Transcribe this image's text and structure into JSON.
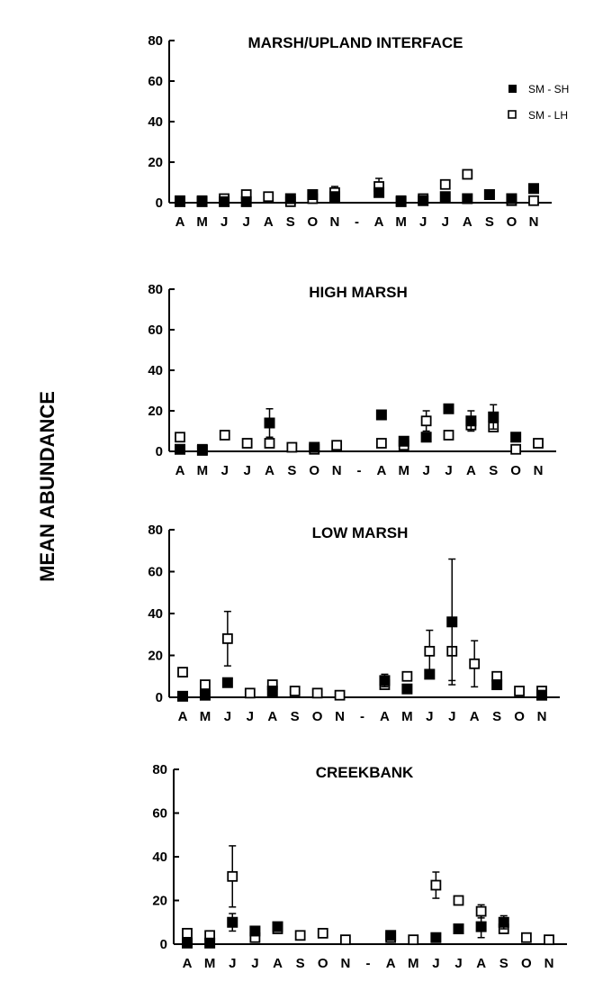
{
  "figure": {
    "ylabel": "MEAN ABUNDANCE"
  },
  "legend": {
    "sh_label": "SM - SH",
    "lh_label": "SM - LH"
  },
  "chart_data": [
    {
      "type": "scatter",
      "title": "MARSH/UPLAND INTERFACE",
      "ylim": [
        0,
        80
      ],
      "yticks": [
        0,
        20,
        40,
        60,
        80
      ],
      "months": [
        "A",
        "M",
        "J",
        "J",
        "A",
        "S",
        "O",
        "N",
        "-",
        "A",
        "M",
        "J",
        "J",
        "A",
        "S",
        "O",
        "N"
      ],
      "legend_position": "top-right",
      "series": [
        {
          "name": "SM - SH",
          "marker": "filled-square",
          "values": [
            0.5,
            0.5,
            0.5,
            0.5,
            null,
            2,
            4,
            3,
            null,
            5,
            0.5,
            1,
            3,
            2,
            4,
            2,
            7
          ],
          "error": [
            0,
            0,
            0,
            0,
            null,
            0,
            0,
            0,
            null,
            0,
            0,
            0,
            0,
            0,
            0,
            0,
            0
          ]
        },
        {
          "name": "SM - LH",
          "marker": "open-square",
          "values": [
            1,
            1,
            2,
            4,
            3,
            0.5,
            2,
            5,
            null,
            8,
            1,
            2,
            9,
            14,
            4,
            1,
            1
          ],
          "error": [
            0,
            0,
            0,
            0,
            0,
            0,
            0,
            3,
            null,
            4,
            0,
            0,
            0,
            2,
            0,
            0,
            0
          ]
        }
      ]
    },
    {
      "type": "scatter",
      "title": "HIGH MARSH",
      "ylim": [
        0,
        80
      ],
      "yticks": [
        0,
        20,
        40,
        60,
        80
      ],
      "months": [
        "A",
        "M",
        "J",
        "J",
        "A",
        "S",
        "O",
        "N",
        "-",
        "A",
        "M",
        "J",
        "J",
        "A",
        "S",
        "O",
        "N"
      ],
      "series": [
        {
          "name": "SM - SH",
          "marker": "filled-square",
          "values": [
            1,
            0.5,
            null,
            null,
            14,
            null,
            2,
            null,
            null,
            18,
            5,
            7,
            21,
            15,
            17,
            7,
            null
          ],
          "error": [
            0,
            0,
            null,
            null,
            7,
            null,
            0,
            null,
            null,
            2,
            0,
            0,
            0,
            5,
            6,
            0,
            null
          ]
        },
        {
          "name": "SM - LH",
          "marker": "open-square",
          "values": [
            7,
            1,
            8,
            4,
            4,
            2,
            1,
            3,
            null,
            4,
            3,
            15,
            8,
            13,
            12,
            1,
            4
          ],
          "error": [
            0,
            0,
            0,
            0,
            0,
            0,
            0,
            0,
            null,
            0,
            0,
            5,
            0,
            0,
            0,
            0,
            0
          ]
        }
      ]
    },
    {
      "type": "scatter",
      "title": "LOW MARSH",
      "ylim": [
        0,
        80
      ],
      "yticks": [
        0,
        20,
        40,
        60,
        80
      ],
      "months": [
        "A",
        "M",
        "J",
        "J",
        "A",
        "S",
        "O",
        "N",
        "-",
        "A",
        "M",
        "J",
        "J",
        "A",
        "S",
        "O",
        "N"
      ],
      "series": [
        {
          "name": "SM - SH",
          "marker": "filled-square",
          "values": [
            0.5,
            1,
            7,
            null,
            3,
            null,
            null,
            null,
            null,
            8,
            4,
            11,
            36,
            null,
            6,
            null,
            1
          ],
          "error": [
            0,
            0,
            0,
            null,
            0,
            null,
            null,
            null,
            null,
            3,
            0,
            2,
            30,
            null,
            0,
            null,
            0
          ]
        },
        {
          "name": "SM - LH",
          "marker": "open-square",
          "values": [
            12,
            6,
            28,
            2,
            6,
            3,
            2,
            1,
            null,
            6,
            10,
            22,
            22,
            16,
            10,
            3,
            3
          ],
          "error": [
            0,
            0,
            13,
            0,
            0,
            0,
            0,
            0,
            null,
            0,
            0,
            10,
            14,
            11,
            0,
            0,
            0
          ]
        }
      ]
    },
    {
      "type": "scatter",
      "title": "CREEKBANK",
      "ylim": [
        0,
        80
      ],
      "yticks": [
        0,
        20,
        40,
        60,
        80
      ],
      "months": [
        "A",
        "M",
        "J",
        "J",
        "A",
        "S",
        "O",
        "N",
        "-",
        "A",
        "M",
        "J",
        "J",
        "A",
        "S",
        "O",
        "N"
      ],
      "series": [
        {
          "name": "SM - SH",
          "marker": "filled-square",
          "values": [
            0.5,
            0.5,
            10,
            6,
            8,
            null,
            null,
            null,
            null,
            4,
            null,
            3,
            7,
            8,
            10,
            null,
            null
          ],
          "error": [
            0,
            0,
            4,
            0,
            0,
            null,
            null,
            null,
            null,
            0,
            null,
            0,
            0,
            5,
            3,
            null,
            null
          ]
        },
        {
          "name": "SM - LH",
          "marker": "open-square",
          "values": [
            5,
            4,
            31,
            3,
            7,
            4,
            5,
            2,
            null,
            3,
            2,
            27,
            20,
            15,
            7,
            3,
            2
          ],
          "error": [
            0,
            0,
            14,
            0,
            0,
            0,
            0,
            0,
            null,
            0,
            0,
            6,
            0,
            3,
            0,
            0,
            0
          ]
        }
      ]
    }
  ]
}
